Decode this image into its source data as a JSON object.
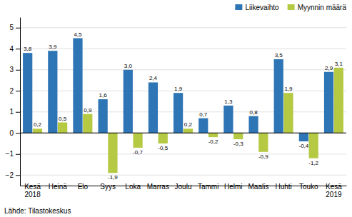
{
  "chart_data": {
    "type": "bar",
    "categories": [
      "Kesä\n2018",
      "Heinä",
      "Elo",
      "Syys",
      "Loka",
      "Marras",
      "Joulu",
      "Tammi",
      "Helmi",
      "Maalis",
      "Huhti",
      "Touko",
      "Kesä\n2019"
    ],
    "series": [
      {
        "name": "Liikevaihto",
        "color": "#2E75B6",
        "values": [
          3.8,
          3.9,
          4.5,
          1.6,
          3.0,
          2.4,
          1.9,
          0.7,
          1.3,
          0.8,
          3.5,
          -0.4,
          2.9
        ],
        "value_labels": [
          "3,8",
          "3,9",
          "4,5",
          "1,6",
          "3,0",
          "2,4",
          "1,9",
          "0,7",
          "1,3",
          "0,8",
          "3,5",
          "-0,4",
          "2,9"
        ]
      },
      {
        "name": "Myynnin määrä",
        "color": "#B5C943",
        "values": [
          0.2,
          0.5,
          0.9,
          -1.9,
          -0.7,
          -0.5,
          0.2,
          -0.2,
          -0.3,
          -0.9,
          1.9,
          -1.2,
          3.1
        ],
        "value_labels": [
          "0,2",
          "0,5",
          "0,9",
          "-1,9",
          "-0,7",
          "-0,5",
          "0,2",
          "-0,2",
          "-0,3",
          "-0,9",
          "1,9",
          "-1,2",
          "3,1"
        ]
      }
    ],
    "ylim": [
      -2.5,
      5.5
    ],
    "yticks": [
      -2,
      -1,
      0,
      1,
      2,
      3,
      4,
      5
    ],
    "grid": true,
    "legend": "upper right",
    "data_labels": true,
    "annotations": [
      "Lähde: Tilastokeskus"
    ]
  }
}
